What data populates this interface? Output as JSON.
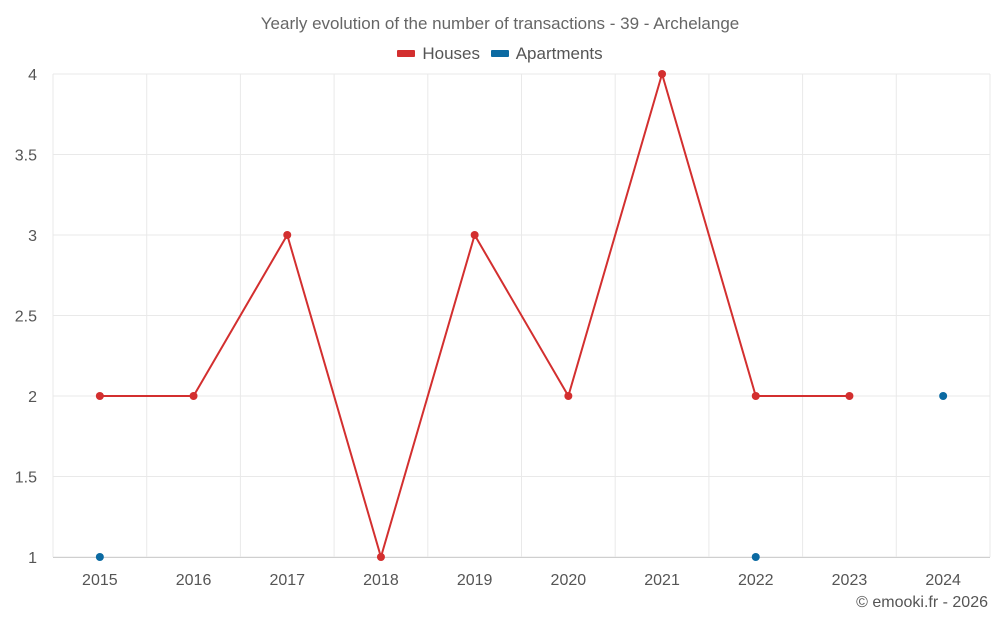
{
  "chart_data": {
    "type": "line",
    "title": "Yearly evolution of the number of transactions - 39 - Archelange",
    "categories": [
      "2015",
      "2016",
      "2017",
      "2018",
      "2019",
      "2020",
      "2021",
      "2022",
      "2023",
      "2024"
    ],
    "series": [
      {
        "name": "Houses",
        "color": "#d32f2f",
        "values": [
          2,
          2,
          3,
          1,
          3,
          2,
          4,
          2,
          2,
          null
        ]
      },
      {
        "name": "Apartments",
        "color": "#0b6aa2",
        "values": [
          1,
          null,
          null,
          null,
          null,
          null,
          null,
          1,
          null,
          2
        ]
      }
    ],
    "ylim": [
      1,
      4
    ],
    "yticks": [
      "1",
      "1.5",
      "2",
      "2.5",
      "3",
      "3.5",
      "4"
    ],
    "grid": true,
    "legend_position": "top-center"
  },
  "credit": "© emooki.fr - 2026"
}
